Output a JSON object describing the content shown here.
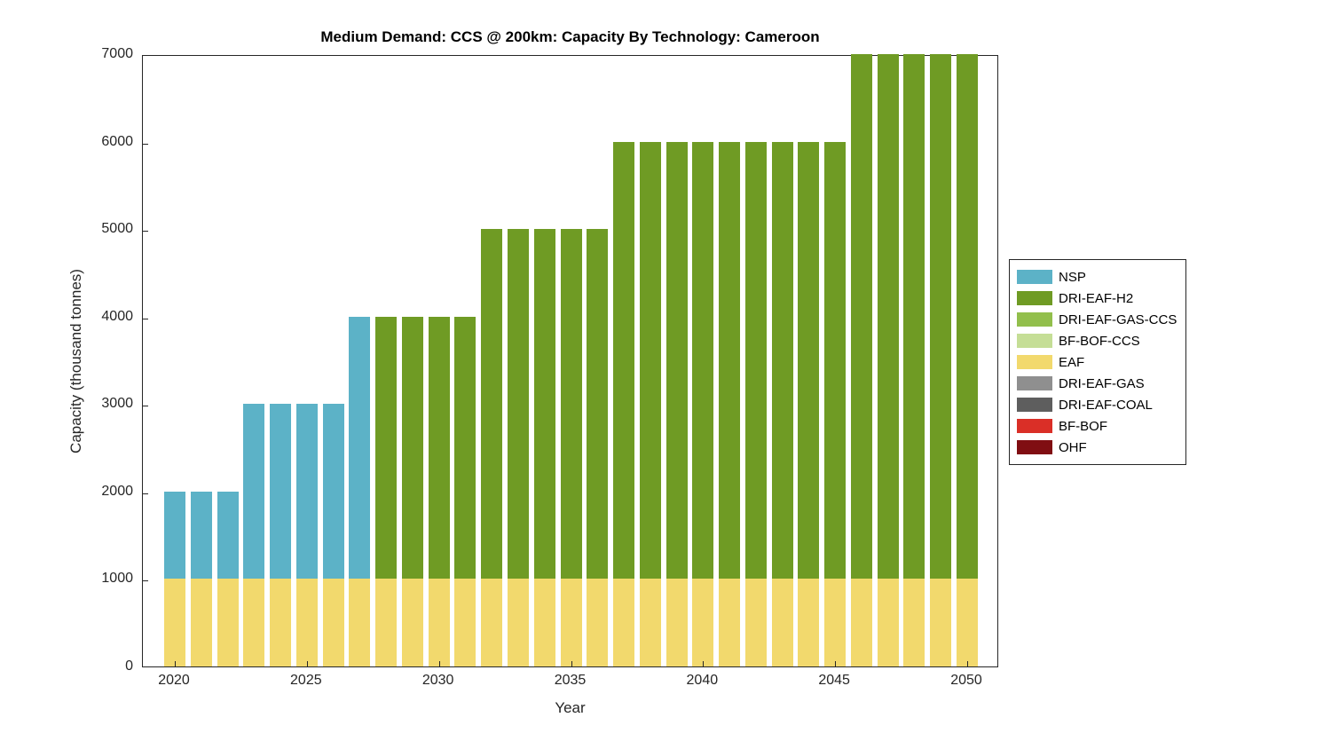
{
  "chart_data": {
    "type": "bar",
    "stacked": true,
    "title": "Medium Demand: CCS @ 200km: Capacity By Technology: Cameroon",
    "xlabel": "Year",
    "ylabel": "Capacity (thousand tonnes)",
    "ylim": [
      0,
      7000
    ],
    "yticks": [
      0,
      1000,
      2000,
      3000,
      4000,
      5000,
      6000,
      7000
    ],
    "xticks": [
      2020,
      2025,
      2030,
      2035,
      2040,
      2045,
      2050
    ],
    "grid": false,
    "legend_position": "right-outside",
    "years": [
      2020,
      2021,
      2022,
      2023,
      2024,
      2025,
      2026,
      2027,
      2028,
      2029,
      2030,
      2031,
      2032,
      2033,
      2034,
      2035,
      2036,
      2037,
      2038,
      2039,
      2040,
      2041,
      2042,
      2043,
      2044,
      2045,
      2046,
      2047,
      2048,
      2049,
      2050
    ],
    "series": [
      {
        "name": "EAF",
        "color": "#f2d96d",
        "values": [
          1000,
          1000,
          1000,
          1000,
          1000,
          1000,
          1000,
          1000,
          1000,
          1000,
          1000,
          1000,
          1000,
          1000,
          1000,
          1000,
          1000,
          1000,
          1000,
          1000,
          1000,
          1000,
          1000,
          1000,
          1000,
          1000,
          1000,
          1000,
          1000,
          1000,
          1000
        ]
      },
      {
        "name": "NSP",
        "color": "#5cb2c7",
        "values": [
          1000,
          1000,
          1000,
          2000,
          2000,
          2000,
          2000,
          3000,
          0,
          0,
          0,
          0,
          0,
          0,
          0,
          0,
          0,
          0,
          0,
          0,
          0,
          0,
          0,
          0,
          0,
          0,
          0,
          0,
          0,
          0,
          0
        ]
      },
      {
        "name": "DRI-EAF-H2",
        "color": "#6f9b24",
        "values": [
          0,
          0,
          0,
          0,
          0,
          0,
          0,
          0,
          3000,
          3000,
          3000,
          3000,
          4000,
          4000,
          4000,
          4000,
          4000,
          5000,
          5000,
          5000,
          5000,
          5000,
          5000,
          5000,
          5000,
          5000,
          6000,
          6000,
          6000,
          6000,
          6000
        ]
      }
    ],
    "legend": [
      {
        "label": "NSP",
        "color": "#5cb2c7"
      },
      {
        "label": "DRI-EAF-H2",
        "color": "#6f9b24"
      },
      {
        "label": "DRI-EAF-GAS-CCS",
        "color": "#92bf4c"
      },
      {
        "label": "BF-BOF-CCS",
        "color": "#c5de96"
      },
      {
        "label": "EAF",
        "color": "#f2d96d"
      },
      {
        "label": "DRI-EAF-GAS",
        "color": "#8f8f8f"
      },
      {
        "label": "DRI-EAF-COAL",
        "color": "#5e5e5e"
      },
      {
        "label": "BF-BOF",
        "color": "#da2f27"
      },
      {
        "label": "OHF",
        "color": "#800e12"
      }
    ]
  }
}
